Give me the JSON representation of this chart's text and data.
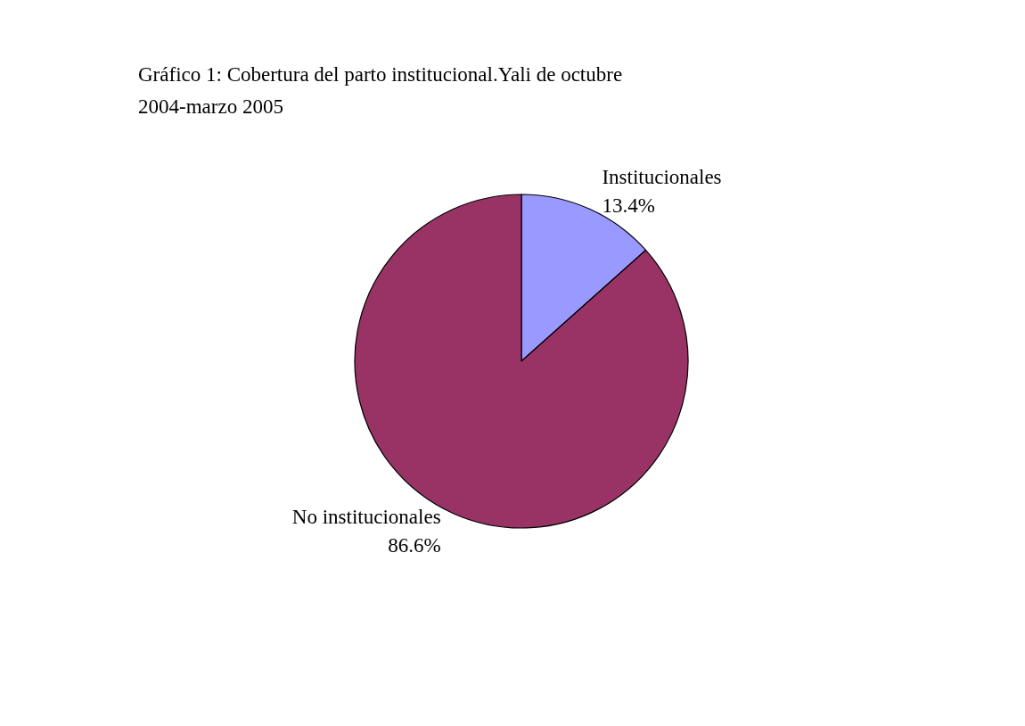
{
  "chart_data": {
    "type": "pie",
    "title": "Gráfico 1: Cobertura del parto institucional.Yali de octubre 2004-marzo 2005",
    "categories": [
      "Institucionales",
      "No institucionales"
    ],
    "values": [
      13.4,
      86.6
    ],
    "colors": [
      "#9999ff",
      "#993366"
    ],
    "value_labels": [
      "13.4%",
      "86.6%"
    ],
    "legend": false
  }
}
